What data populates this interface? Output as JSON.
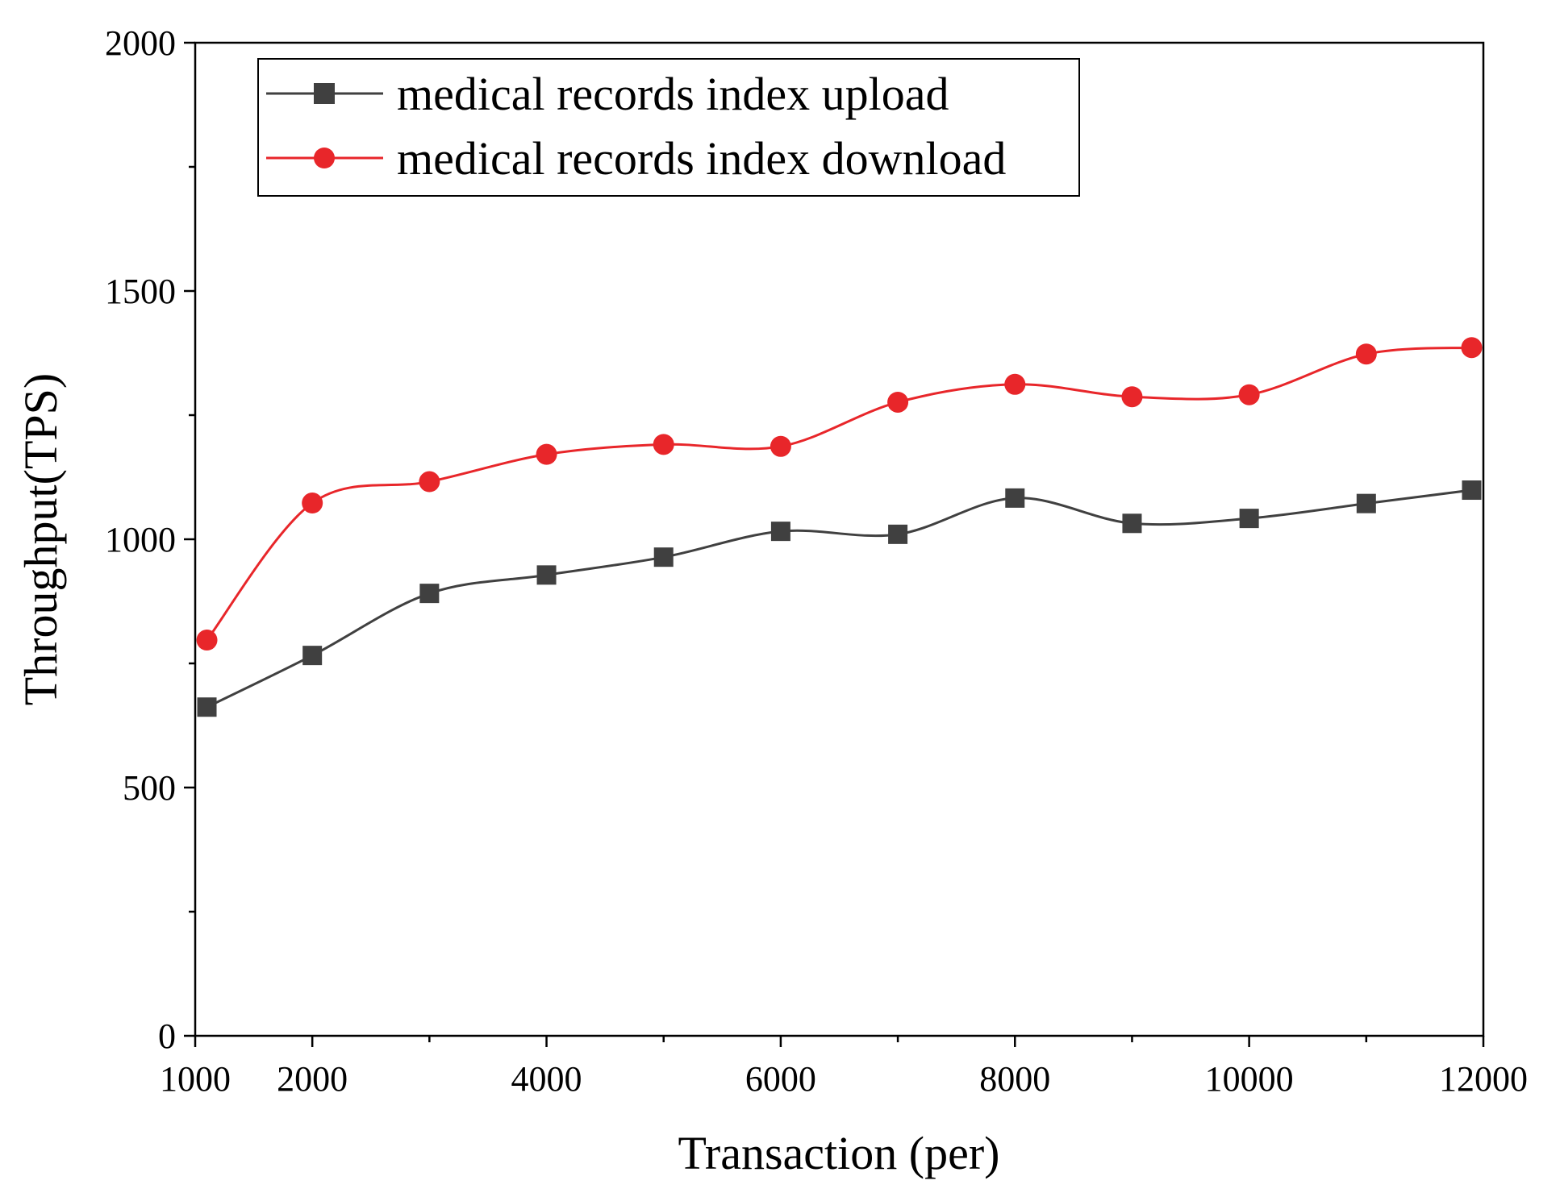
{
  "chart_data": {
    "type": "line",
    "title": "",
    "xlabel": "Transaction (per)",
    "ylabel": "Throughput(TPS)",
    "xlim": [
      1000,
      12000
    ],
    "ylim": [
      0,
      2000
    ],
    "x_ticks": [
      1000,
      2000,
      4000,
      6000,
      8000,
      10000,
      12000
    ],
    "x_tick_labels": [
      "1000",
      "2000",
      "4000",
      "6000",
      "8000",
      "10000",
      "12000"
    ],
    "x_minor_ticks": [
      3000,
      5000,
      7000,
      9000,
      11000
    ],
    "y_ticks": [
      0,
      500,
      1000,
      1500,
      2000
    ],
    "y_tick_labels": [
      "0",
      "500",
      "1000",
      "1500",
      "2000"
    ],
    "y_minor_ticks": [
      250,
      750,
      1250,
      1750
    ],
    "grid": false,
    "legend_position": "top-left",
    "series": [
      {
        "name": "medical records index upload",
        "color": "#404040",
        "marker": "square",
        "x": [
          1100,
          2000,
          3000,
          4000,
          5000,
          6000,
          7000,
          8000,
          9000,
          10000,
          11000,
          11900
        ],
        "values": [
          662,
          766,
          891,
          928,
          964,
          1016,
          1010,
          1083,
          1032,
          1042,
          1072,
          1099
        ]
      },
      {
        "name": "medical records index download",
        "color": "#e8262a",
        "marker": "circle",
        "x": [
          1100,
          2000,
          3000,
          4000,
          5000,
          6000,
          7000,
          8000,
          9000,
          10000,
          11000,
          11900
        ],
        "values": [
          797,
          1073,
          1116,
          1171,
          1191,
          1187,
          1276,
          1312,
          1287,
          1291,
          1373,
          1386
        ]
      }
    ]
  }
}
